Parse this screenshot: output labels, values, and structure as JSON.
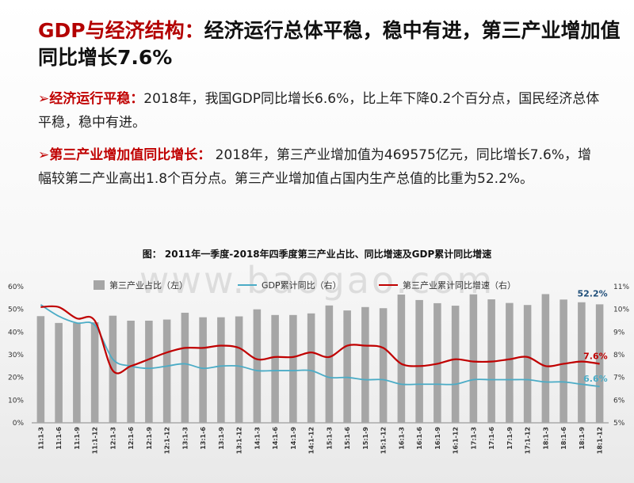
{
  "slide": {
    "title_red": "GDP与经济结构：",
    "title_black": "经济运行总体平稳，稳中有进，第三产业增加值同比增长7.6%",
    "p1_arrow": "➢",
    "p1_lead": "经济运行平稳：",
    "p1_text": "2018年，我国GDP同比增长6.6%，比上年下降0.2个百分点，国民经济总体平稳，稳中有进。",
    "p2_arrow": "➢",
    "p2_lead": "第三产业增加值同比增长：",
    "p2_text": " 2018年，第三产业增加值为469575亿元，同比增长7.6%，增幅较第二产业高出1.8个百分点。第三产业增加值占国内生产总值的比重为52.2%。",
    "watermark": "www.baogao.com",
    "colors": {
      "accent_red": "#c00000",
      "bar_gray": "#a6a6a6",
      "line_cyan": "#4bacc6",
      "line_red": "#c00000"
    }
  },
  "chart_data": {
    "type": "bar",
    "title": "图： 2011年一季度-2018年四季度第三产业占比、同比增速及GDP累计同比增速",
    "categories": [
      "11:1-3",
      "11:1-6",
      "11:1-9",
      "11:1-12",
      "12:1-3",
      "12:1-6",
      "12:1-9",
      "12:1-12",
      "13:1-3",
      "13:1-6",
      "13:1-9",
      "13:1-12",
      "14:1-3",
      "14:1-6",
      "14:1-9",
      "14:1-12",
      "15:1-3",
      "15:1-6",
      "15:1-9",
      "15:1-12",
      "16:1-3",
      "16:1-6",
      "16:1-9",
      "16:1-12",
      "17:1-3",
      "17:1-6",
      "17:1-9",
      "17:1-12",
      "18:1-3",
      "18:1-6",
      "18:1-9",
      "18:1-12"
    ],
    "series": [
      {
        "name": "第三产业占比（左）",
        "type": "bar",
        "axis": "left",
        "color": "#a6a6a6",
        "values": [
          47.0,
          44.0,
          44.0,
          44.3,
          47.2,
          45.0,
          45.0,
          45.5,
          48.5,
          46.5,
          46.5,
          46.9,
          50.0,
          47.5,
          47.5,
          48.2,
          51.7,
          49.5,
          51.0,
          50.5,
          56.5,
          54.1,
          52.7,
          51.6,
          56.6,
          54.4,
          52.8,
          51.9,
          56.7,
          54.3,
          53.1,
          52.2
        ]
      },
      {
        "name": "GDP累计同比（右）",
        "type": "line",
        "axis": "right",
        "color": "#4bacc6",
        "values": [
          10.2,
          9.7,
          9.4,
          9.3,
          7.8,
          7.5,
          7.4,
          7.5,
          7.6,
          7.4,
          7.5,
          7.5,
          7.3,
          7.3,
          7.3,
          7.3,
          7.0,
          7.0,
          6.9,
          6.9,
          6.7,
          6.7,
          6.7,
          6.7,
          6.9,
          6.9,
          6.9,
          6.9,
          6.8,
          6.8,
          6.7,
          6.6
        ]
      },
      {
        "name": "第三产业累计同比增速（右）",
        "type": "line",
        "axis": "right",
        "color": "#c00000",
        "values": [
          10.1,
          10.1,
          9.6,
          9.5,
          7.3,
          7.5,
          7.8,
          8.1,
          8.3,
          8.3,
          8.4,
          8.3,
          7.8,
          7.9,
          7.9,
          8.1,
          7.9,
          8.4,
          8.4,
          8.3,
          7.6,
          7.5,
          7.6,
          7.8,
          7.7,
          7.7,
          7.8,
          7.9,
          7.5,
          7.6,
          7.7,
          7.6
        ]
      }
    ],
    "y_left": {
      "min": 0,
      "max": 60,
      "step": 10,
      "unit": "%",
      "ticks": [
        "0%",
        "10%",
        "20%",
        "30%",
        "40%",
        "50%",
        "60%"
      ]
    },
    "y_right": {
      "min": 5,
      "max": 11,
      "step": 1,
      "unit": "%",
      "ticks": [
        "5%",
        "6%",
        "7%",
        "8%",
        "9%",
        "10%",
        "11%"
      ]
    },
    "annotations": [
      {
        "text": "52.2%",
        "series": 0,
        "index": 31,
        "color": "#1f4e79"
      },
      {
        "text": "7.6%",
        "series": 2,
        "index": 31,
        "color": "#c00000"
      },
      {
        "text": "6.6%",
        "series": 1,
        "index": 31,
        "color": "#4bacc6"
      }
    ],
    "legend_placement": "top",
    "grid": false
  }
}
